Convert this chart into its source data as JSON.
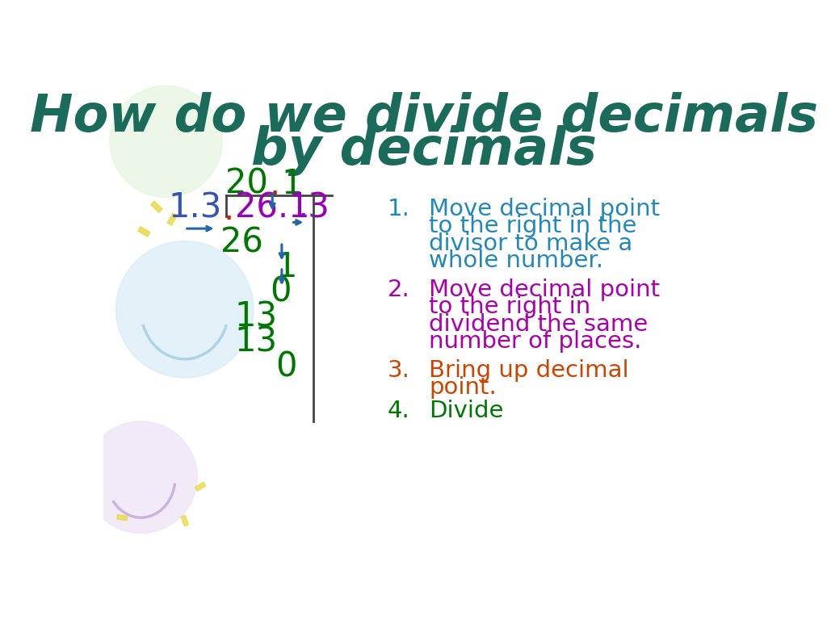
{
  "title_line1": "How do we divide decimals",
  "title_line2": "by decimals",
  "title_color": "#1a6b5a",
  "bg_color": "#ffffff",
  "divisor_color": "#3355bb",
  "dividend_color": "#9900bb",
  "quotient_color": "#007700",
  "quotient_dot_color": "#cc2200",
  "division_color": "#007700",
  "arrow_color": "#2266aa",
  "bracket_color": "#444444",
  "steps_color": [
    "#2288bb",
    "#aa00aa",
    "#cc4400",
    "#007700"
  ],
  "step1_text": [
    "Move decimal point",
    "to the right in the",
    "divisor to make a",
    "whole number."
  ],
  "step2_text": [
    "Move decimal point",
    "to the right in",
    "dividend the same",
    "number of places."
  ],
  "step3_text": [
    "Bring up decimal",
    "point."
  ],
  "step4_text": [
    "Divide"
  ]
}
